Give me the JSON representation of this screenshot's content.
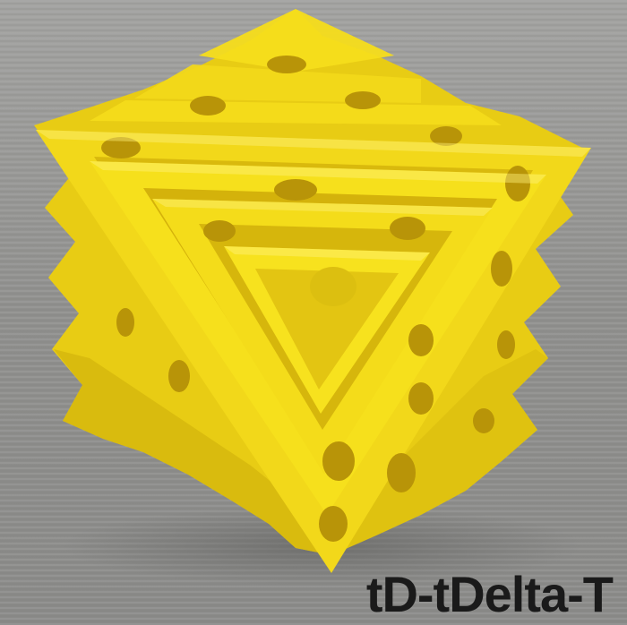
{
  "caption": {
    "label": "tD-tDelta-T"
  },
  "colors": {
    "background_gray": "#9a9a98",
    "lattice_yellow": "#f6e01c",
    "lattice_shadow": "#c9a90a",
    "hole_dark": "#b08e08",
    "caption_text": "#1a1a1a"
  },
  "subject": {
    "icon": "yellow-3d-printed-lattice-object"
  }
}
